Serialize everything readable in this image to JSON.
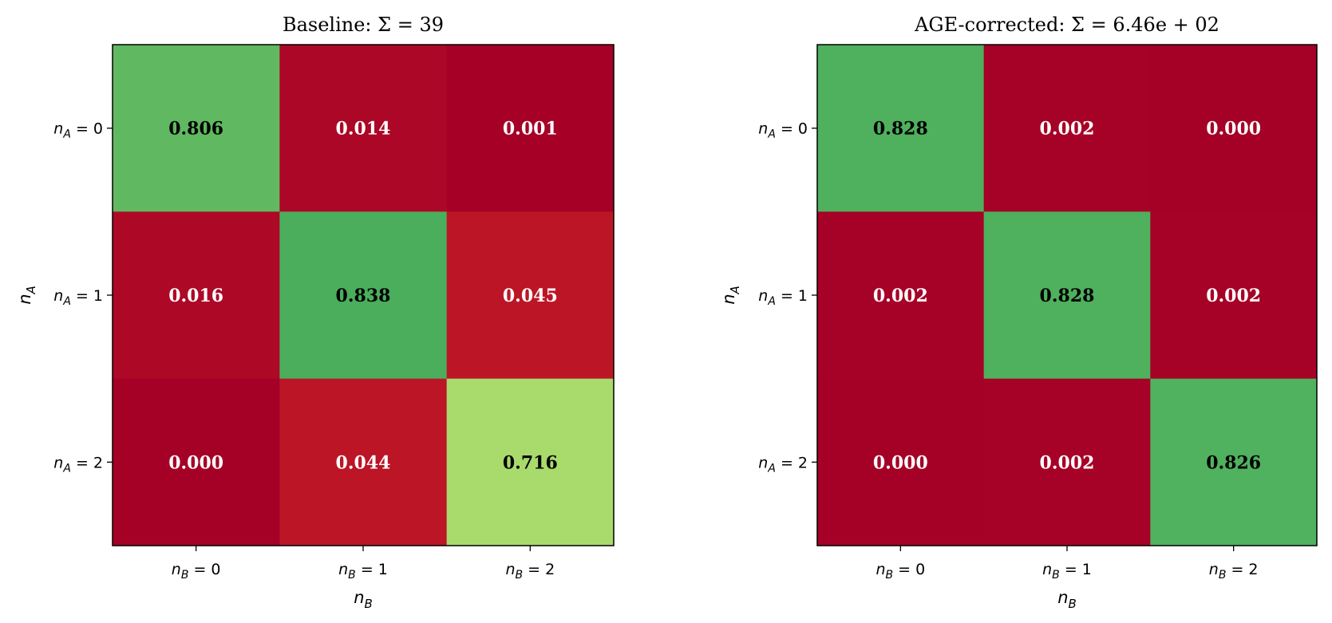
{
  "chart_data": [
    {
      "type": "heatmap",
      "title": "Baseline: Σ = 39",
      "xlabel": "n_B",
      "ylabel": "n_A",
      "x_tick_labels": [
        "n_B = 0",
        "n_B = 1",
        "n_B = 2"
      ],
      "y_tick_labels": [
        "n_A = 0",
        "n_A = 1",
        "n_A = 2"
      ],
      "values": [
        [
          0.806,
          0.014,
          0.001
        ],
        [
          0.016,
          0.838,
          0.045
        ],
        [
          0.0,
          0.044,
          0.716
        ]
      ],
      "value_labels": [
        [
          "0.806",
          "0.014",
          "0.001"
        ],
        [
          "0.016",
          "0.838",
          "0.045"
        ],
        [
          "0.000",
          "0.044",
          "0.716"
        ]
      ],
      "colormap": "red-to-green",
      "grid": false
    },
    {
      "type": "heatmap",
      "title": "AGE-corrected: Σ = 6.46e + 02",
      "xlabel": "n_B",
      "ylabel": "n_A",
      "x_tick_labels": [
        "n_B = 0",
        "n_B = 1",
        "n_B = 2"
      ],
      "y_tick_labels": [
        "n_A = 0",
        "n_A = 1",
        "n_A = 2"
      ],
      "values": [
        [
          0.828,
          0.002,
          0.0
        ],
        [
          0.002,
          0.828,
          0.002
        ],
        [
          0.0,
          0.002,
          0.826
        ]
      ],
      "value_labels": [
        [
          "0.828",
          "0.002",
          "0.000"
        ],
        [
          "0.002",
          "0.828",
          "0.002"
        ],
        [
          "0.000",
          "0.002",
          "0.826"
        ]
      ],
      "colormap": "red-to-green",
      "grid": false
    }
  ],
  "colors": {
    "low": "#a50026",
    "high_green": "#4daf5e",
    "light_green": "#9bd46a"
  }
}
